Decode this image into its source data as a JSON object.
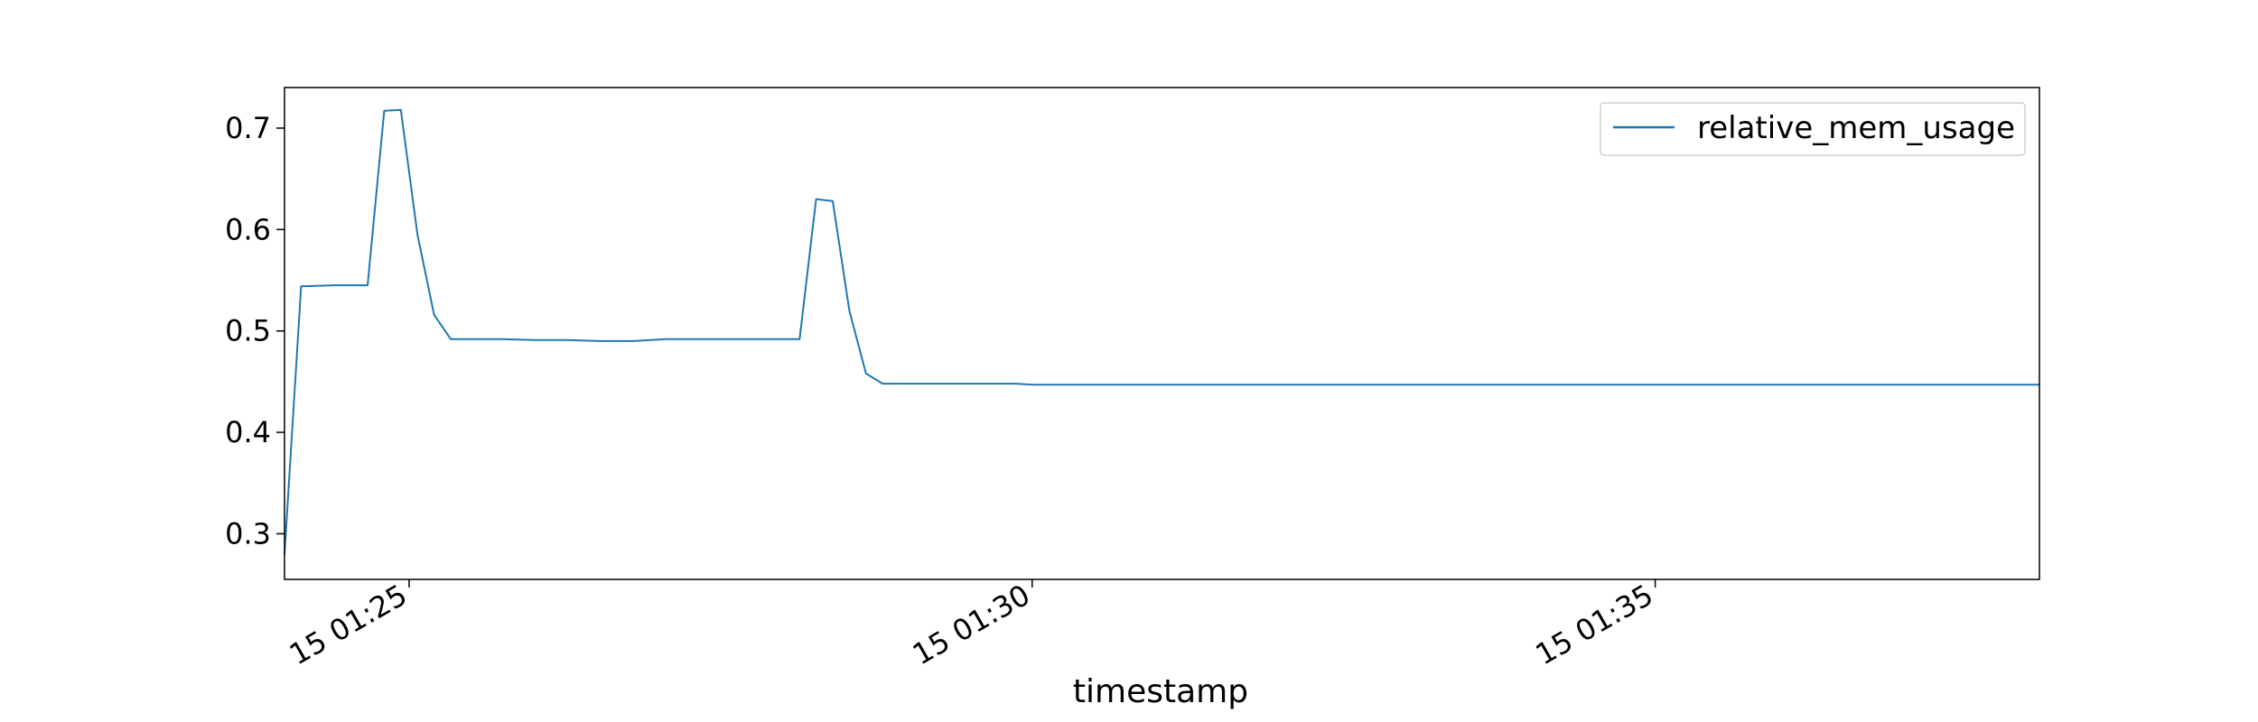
{
  "chart_data": {
    "type": "line",
    "title": "",
    "xlabel": "timestamp",
    "ylabel": "",
    "legend": {
      "position": "top-right",
      "entries": [
        "relative_mem_usage"
      ]
    },
    "grid": false,
    "xlim": [
      "15 01:24:00",
      "15 01:38:05"
    ],
    "ylim": [
      0.255,
      0.74
    ],
    "x_ticks": [
      {
        "value": "15 01:25:00",
        "label": "15 01:25"
      },
      {
        "value": "15 01:30:00",
        "label": "15 01:30"
      },
      {
        "value": "15 01:35:00",
        "label": "15 01:35"
      }
    ],
    "y_ticks": [
      {
        "value": 0.3,
        "label": "0.3"
      },
      {
        "value": 0.4,
        "label": "0.4"
      },
      {
        "value": 0.5,
        "label": "0.5"
      },
      {
        "value": 0.6,
        "label": "0.6"
      },
      {
        "value": 0.7,
        "label": "0.7"
      }
    ],
    "series": [
      {
        "name": "relative_mem_usage",
        "color": "#1f77b4",
        "x": [
          "15 01:24:00",
          "15 01:24:08",
          "15 01:24:24",
          "15 01:24:40",
          "15 01:24:48",
          "15 01:24:56",
          "15 01:25:04",
          "15 01:25:12",
          "15 01:25:20",
          "15 01:25:28",
          "15 01:25:44",
          "15 01:26:00",
          "15 01:26:16",
          "15 01:26:32",
          "15 01:26:48",
          "15 01:27:04",
          "15 01:27:20",
          "15 01:27:36",
          "15 01:27:52",
          "15 01:28:08",
          "15 01:28:16",
          "15 01:28:24",
          "15 01:28:32",
          "15 01:28:40",
          "15 01:28:48",
          "15 01:29:04",
          "15 01:29:20",
          "15 01:29:36",
          "15 01:29:52",
          "15 01:30:00",
          "15 01:31:00",
          "15 01:32:00",
          "15 01:33:00",
          "15 01:34:00",
          "15 01:35:00",
          "15 01:36:00",
          "15 01:37:00",
          "15 01:38:05"
        ],
        "y": [
          0.28,
          0.544,
          0.545,
          0.545,
          0.717,
          0.718,
          0.595,
          0.516,
          0.492,
          0.492,
          0.492,
          0.491,
          0.491,
          0.49,
          0.49,
          0.492,
          0.492,
          0.492,
          0.492,
          0.492,
          0.63,
          0.628,
          0.52,
          0.458,
          0.448,
          0.448,
          0.448,
          0.448,
          0.448,
          0.447,
          0.447,
          0.447,
          0.447,
          0.447,
          0.447,
          0.447,
          0.447,
          0.447
        ]
      }
    ]
  }
}
